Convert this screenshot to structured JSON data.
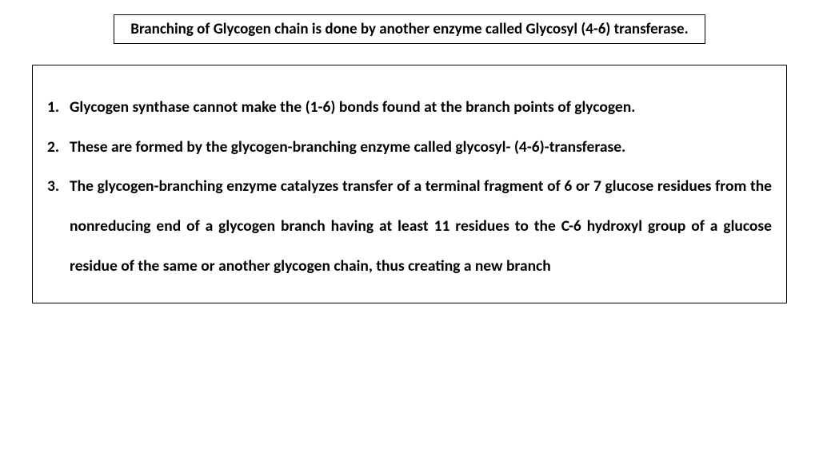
{
  "title": "Branching of Glycogen chain is done by another enzyme called Glycosyl (4-6) transferase.",
  "items": [
    "Glycogen synthase cannot make the (1-6) bonds found at the branch points of glycogen.",
    "These are formed by the glycogen-branching enzyme called glycosyl- (4-6)-transferase.",
    "The glycogen-branching enzyme catalyzes transfer of a terminal fragment of 6 or 7 glucose residues from the nonreducing end of a glycogen branch having at least 11 residues to the C-6 hydroxyl group of a glucose residue of the same or another glycogen chain, thus creating a new branch"
  ],
  "colors": {
    "border": "#000000",
    "text": "#000000",
    "background": "#ffffff"
  },
  "typography": {
    "title_fontsize": 19,
    "body_fontsize": 19.5,
    "font_weight": 700,
    "line_height": 2.55,
    "font_family": "Calibri"
  }
}
